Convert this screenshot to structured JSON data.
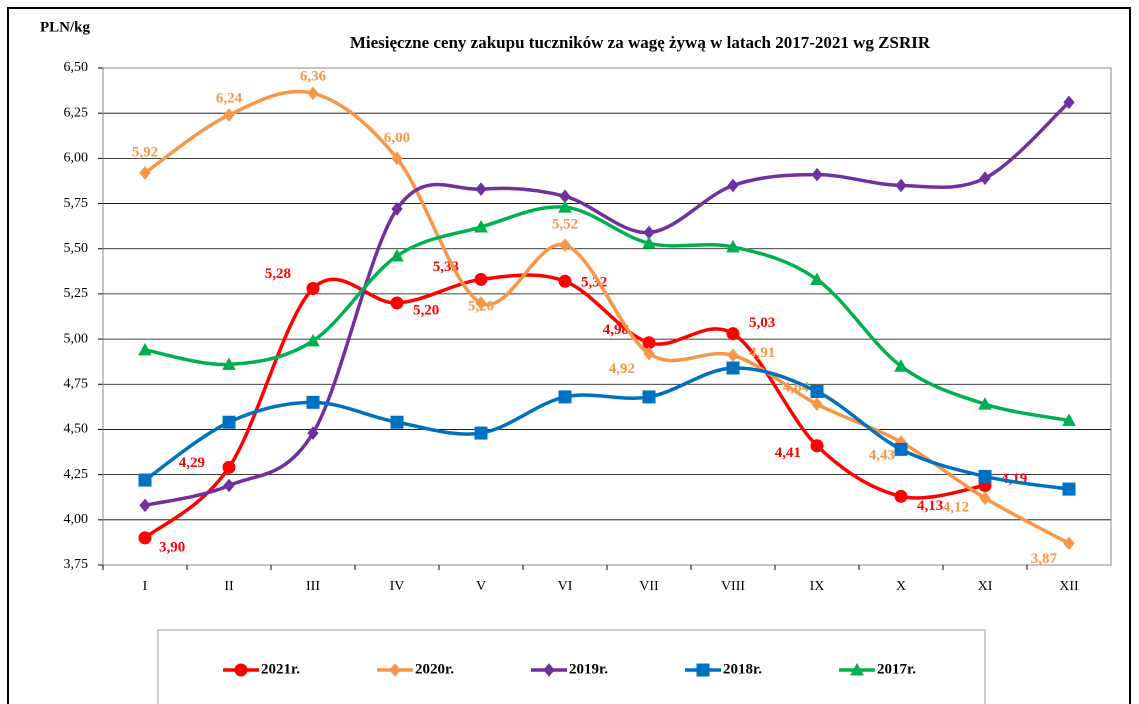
{
  "chart_data": {
    "type": "line",
    "title": "Miesięczne ceny zakupu tuczników za wagę żywą w latach 2017-2021 wg ZSRIR",
    "y_label": "PLN/kg",
    "categories": [
      "I",
      "II",
      "III",
      "IV",
      "V",
      "VI",
      "VII",
      "VIII",
      "IX",
      "X",
      "XI",
      "XII"
    ],
    "ylim": [
      3.75,
      6.5
    ],
    "yticks": [
      {
        "value": 3.75,
        "label": "3,75"
      },
      {
        "value": 4,
        "label": "4,00"
      },
      {
        "value": 4.25,
        "label": "4,25"
      },
      {
        "value": 4.5,
        "label": "4,50"
      },
      {
        "value": 4.75,
        "label": "4,75"
      },
      {
        "value": 5,
        "label": "5,00"
      },
      {
        "value": 5.25,
        "label": "5,25"
      },
      {
        "value": 5.5,
        "label": "5,50"
      },
      {
        "value": 5.75,
        "label": "5,75"
      },
      {
        "value": 6,
        "label": "6,00"
      },
      {
        "value": 6.25,
        "label": "6,25"
      },
      {
        "value": 6.5,
        "label": "6,50"
      }
    ],
    "grid": true,
    "series": [
      {
        "name": "2021r.",
        "color": "#ff0000",
        "marker": "circle",
        "values": [
          3.9,
          4.29,
          5.28,
          5.2,
          5.33,
          5.32,
          4.98,
          5.03,
          4.41,
          4.13,
          4.19,
          null
        ],
        "value_labels": [
          "3,90",
          "4,29",
          "5,28",
          "5,20",
          "5,33",
          "5,32",
          "4,98",
          "5,03",
          "4,41",
          "4,13",
          "4,19",
          null
        ]
      },
      {
        "name": "2020r.",
        "color": "#f79646",
        "marker": "diamond",
        "values": [
          5.92,
          6.24,
          6.36,
          6.0,
          5.2,
          5.52,
          4.92,
          4.91,
          4.64,
          4.43,
          4.12,
          3.87
        ],
        "value_labels": [
          "5,92",
          "6,24",
          "6,36",
          "6,00",
          "5,20",
          "5,52",
          "4,92",
          "4,91",
          "4,64",
          "4,43",
          "4,12",
          "3,87"
        ]
      },
      {
        "name": "2019r.",
        "color": "#7030a0",
        "marker": "diamond",
        "values": [
          4.08,
          4.19,
          4.48,
          5.72,
          5.83,
          5.79,
          5.59,
          5.85,
          5.91,
          5.85,
          5.89,
          6.31
        ]
      },
      {
        "name": "2018r.",
        "color": "#0070c0",
        "marker": "square",
        "values": [
          4.22,
          4.54,
          4.65,
          4.54,
          4.48,
          4.68,
          4.68,
          4.84,
          4.71,
          4.39,
          4.24,
          4.17
        ]
      },
      {
        "name": "2017r.",
        "color": "#00b050",
        "marker": "triangle",
        "values": [
          4.94,
          4.86,
          4.99,
          5.46,
          5.62,
          5.73,
          5.53,
          5.51,
          5.33,
          4.85,
          4.64,
          4.55
        ]
      }
    ]
  }
}
